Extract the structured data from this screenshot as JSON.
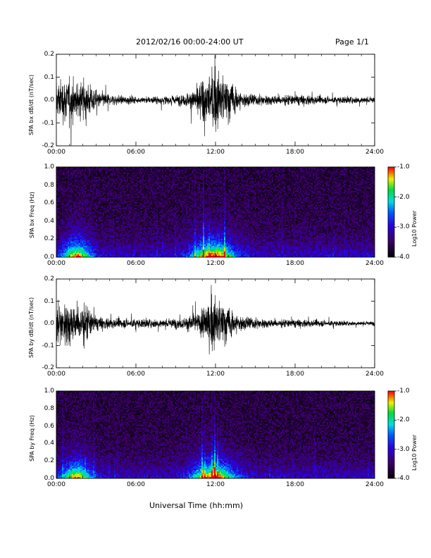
{
  "header": {
    "title": "2012/02/16  00:00-24:00 UT",
    "page": "Page 1/1"
  },
  "xlabel": "Universal Time (hh:mm)",
  "chart_data": [
    {
      "type": "line",
      "ylabel": "SPA bx dB/dt (nT/sec)",
      "x_ticks": [
        "00:00",
        "06:00",
        "12:00",
        "18:00",
        "24:00"
      ],
      "y_ticks": [
        "0.2",
        "0.1",
        "0.0",
        "-0.1",
        "-0.2"
      ],
      "xlim": [
        0,
        24
      ],
      "ylim": [
        -0.2,
        0.2
      ],
      "series": [
        {
          "x": [
            0,
            1,
            1.5,
            2,
            3,
            4,
            6,
            8,
            9.5,
            10,
            10.5,
            11,
            11.5,
            12,
            12.5,
            13,
            13.5,
            14,
            15,
            16,
            18,
            19,
            20,
            21,
            22,
            23,
            24
          ],
          "envelope": [
            0.18,
            0.2,
            0.14,
            0.2,
            0.08,
            0.05,
            0.03,
            0.035,
            0.05,
            0.07,
            0.1,
            0.2,
            0.22,
            0.25,
            0.25,
            0.2,
            0.13,
            0.07,
            0.05,
            0.045,
            0.05,
            0.045,
            0.035,
            0.03,
            0.03,
            0.03,
            0.03
          ]
        }
      ]
    },
    {
      "type": "heatmap",
      "ylabel": "SPA bx Freq (Hz)",
      "colorbar_label": "Log10 Power",
      "colorbar_ticks": [
        "-1.0",
        "-2.0",
        "-3.0",
        "-4.0"
      ],
      "zlim": [
        -4,
        -1
      ],
      "x_ticks": [
        "00:00",
        "06:00",
        "12:00",
        "18:00",
        "24:00"
      ],
      "y_ticks": [
        "1.0",
        "0.8",
        "0.6",
        "0.4",
        "0.2",
        "0.0"
      ],
      "xlim": [
        0,
        24
      ],
      "ylim": [
        0,
        1
      ]
    },
    {
      "type": "line",
      "ylabel": "SPA by dB/dt (nT/sec)",
      "x_ticks": [
        "00:00",
        "06:00",
        "12:00",
        "18:00",
        "24:00"
      ],
      "y_ticks": [
        "0.2",
        "0.1",
        "0.0",
        "-0.1",
        "-0.2"
      ],
      "xlim": [
        0,
        24
      ],
      "ylim": [
        -0.2,
        0.2
      ],
      "series": [
        {
          "x": [
            0,
            1,
            1.5,
            2,
            3,
            4,
            6,
            8,
            9.5,
            10,
            10.5,
            11,
            11.5,
            12,
            12.5,
            13,
            13.5,
            14,
            15,
            16,
            18,
            19,
            20,
            21,
            22,
            23,
            24
          ],
          "envelope": [
            0.18,
            0.22,
            0.16,
            0.22,
            0.07,
            0.05,
            0.04,
            0.04,
            0.05,
            0.07,
            0.09,
            0.14,
            0.2,
            0.25,
            0.22,
            0.16,
            0.1,
            0.07,
            0.05,
            0.04,
            0.04,
            0.035,
            0.03,
            0.025,
            0.02,
            0.02,
            0.02
          ]
        }
      ]
    },
    {
      "type": "heatmap",
      "ylabel": "SPA by Freq (Hz)",
      "colorbar_label": "Log10 Power",
      "colorbar_ticks": [
        "-1.0",
        "-2.0",
        "-3.0",
        "-4.0"
      ],
      "zlim": [
        -4,
        -1
      ],
      "x_ticks": [
        "00:00",
        "06:00",
        "12:00",
        "18:00",
        "24:00"
      ],
      "y_ticks": [
        "1.0",
        "0.8",
        "0.6",
        "0.4",
        "0.2",
        "0.0"
      ],
      "xlim": [
        0,
        24
      ],
      "ylim": [
        0,
        1
      ]
    }
  ]
}
